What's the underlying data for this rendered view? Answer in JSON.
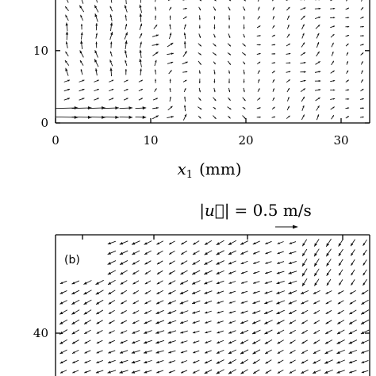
{
  "chart_data": [
    {
      "type": "quiver",
      "panel": "a",
      "xlabel_var": "x",
      "xlabel_sub": "1",
      "xlabel_unit": "(mm)",
      "xlim": [
        0,
        33
      ],
      "ylim": [
        0,
        17
      ],
      "x_ticks": [
        0,
        10,
        20,
        30
      ],
      "x_tick_labels": [
        "0",
        "10",
        "20",
        "30"
      ],
      "y_ticks": [
        0,
        10
      ],
      "y_tick_labels": [
        "0",
        "10"
      ],
      "grid": false
    },
    {
      "type": "quiver",
      "panel": "b",
      "panel_label": "(b)",
      "y_ticks": [
        40
      ],
      "y_tick_labels": [
        "40"
      ],
      "grid": false
    }
  ],
  "scale_annotation": {
    "label_left": "|u⃗|",
    "label_right": "= 0.5 m/s",
    "value_m_per_s": 0.5
  }
}
